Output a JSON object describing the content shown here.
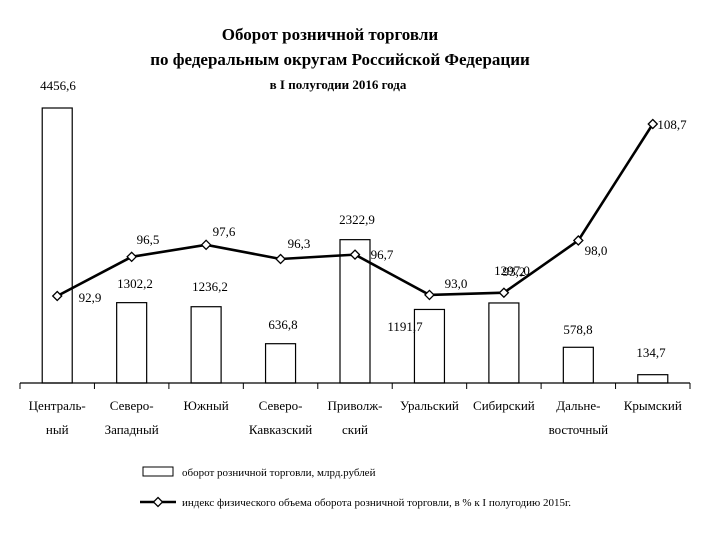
{
  "chart_data": {
    "type": "bar",
    "title_lines": [
      "Оборот розничной торговли",
      "по федеральным округам Российской Федерации"
    ],
    "subtitle": "в I полугодии 2016 года",
    "categories": [
      [
        "Централь-",
        "ный"
      ],
      [
        "Северо-",
        "Западный"
      ],
      [
        "Южный"
      ],
      [
        "Северо-",
        "Кавказский"
      ],
      [
        "Приволж-",
        "ский"
      ],
      [
        "Уральский"
      ],
      [
        "Сибирский"
      ],
      [
        "Дальне-",
        "восточный"
      ],
      [
        "Крымский"
      ]
    ],
    "bars": {
      "name": "оборот розничной торговли, млрд.рублей",
      "values": [
        4456.6,
        1302.2,
        1236.2,
        636.8,
        2322.9,
        1191.7,
        1297.0,
        578.8,
        134.7
      ],
      "labels": [
        "4456,6",
        "1302,2",
        "1236,2",
        "636,8",
        "2322,9",
        "1191,7",
        "1297,0",
        "578,8",
        "134,7"
      ],
      "color": "#ffffff",
      "stroke": "#000000"
    },
    "line": {
      "name": "индекс физического объема оборота розничной торговли, в % к I полугодию 2015г.",
      "values": [
        92.9,
        96.5,
        97.6,
        96.3,
        96.7,
        93.0,
        93.2,
        98.0,
        108.7
      ],
      "labels": [
        "92,9",
        "96,5",
        "97,6",
        "96,3",
        "96,7",
        "93,0",
        "93,2",
        "98,0",
        "108,7"
      ],
      "color": "#000000",
      "marker": "diamond"
    },
    "bar_ylim": [
      0,
      4600
    ],
    "line_ylim": [
      82,
      112
    ],
    "grid": false,
    "legend_position": "bottom"
  }
}
